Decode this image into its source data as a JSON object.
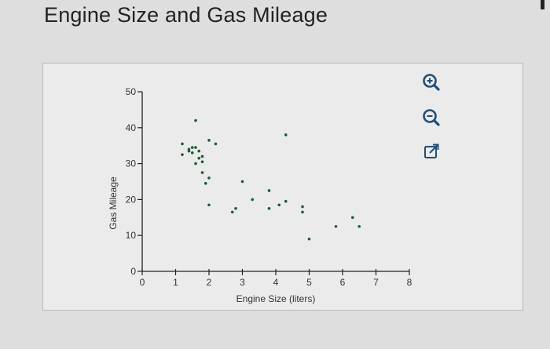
{
  "page": {
    "title": "Engine Size and Gas Mileage"
  },
  "toolbar": {
    "icons": [
      "zoom-in-icon",
      "zoom-out-icon",
      "open-external-icon"
    ],
    "accent_color": "#1f4e7a"
  },
  "chart_data": {
    "type": "scatter",
    "title": "",
    "xlabel": "Engine Size (liters)",
    "ylabel": "Gas Mileage",
    "xlim": [
      0,
      8
    ],
    "ylim": [
      0,
      50
    ],
    "xticks": [
      0,
      1,
      2,
      3,
      4,
      5,
      6,
      7,
      8
    ],
    "yticks": [
      0,
      10,
      20,
      30,
      40,
      50
    ],
    "grid": false,
    "point_color": "#1e5a32",
    "points": [
      {
        "x": 1.2,
        "y": 35.5
      },
      {
        "x": 1.2,
        "y": 32.5
      },
      {
        "x": 1.4,
        "y": 33.5
      },
      {
        "x": 1.4,
        "y": 34.0
      },
      {
        "x": 1.5,
        "y": 33.0
      },
      {
        "x": 1.5,
        "y": 34.5
      },
      {
        "x": 1.6,
        "y": 42.0
      },
      {
        "x": 1.6,
        "y": 34.5
      },
      {
        "x": 1.6,
        "y": 30.0
      },
      {
        "x": 1.7,
        "y": 33.5
      },
      {
        "x": 1.7,
        "y": 31.5
      },
      {
        "x": 1.8,
        "y": 32.0
      },
      {
        "x": 1.8,
        "y": 30.5
      },
      {
        "x": 1.8,
        "y": 27.5
      },
      {
        "x": 1.9,
        "y": 24.5
      },
      {
        "x": 2.0,
        "y": 36.5
      },
      {
        "x": 2.0,
        "y": 26.0
      },
      {
        "x": 2.0,
        "y": 18.5
      },
      {
        "x": 2.2,
        "y": 35.5
      },
      {
        "x": 2.7,
        "y": 16.5
      },
      {
        "x": 2.8,
        "y": 17.5
      },
      {
        "x": 3.0,
        "y": 25.0
      },
      {
        "x": 3.3,
        "y": 20.0
      },
      {
        "x": 3.8,
        "y": 22.5
      },
      {
        "x": 3.8,
        "y": 17.5
      },
      {
        "x": 4.1,
        "y": 18.5
      },
      {
        "x": 4.3,
        "y": 38.0
      },
      {
        "x": 4.3,
        "y": 19.5
      },
      {
        "x": 4.8,
        "y": 18.0
      },
      {
        "x": 4.8,
        "y": 16.5
      },
      {
        "x": 5.0,
        "y": 9.0
      },
      {
        "x": 5.8,
        "y": 12.5
      },
      {
        "x": 6.3,
        "y": 15.0
      },
      {
        "x": 6.5,
        "y": 12.5
      }
    ]
  }
}
